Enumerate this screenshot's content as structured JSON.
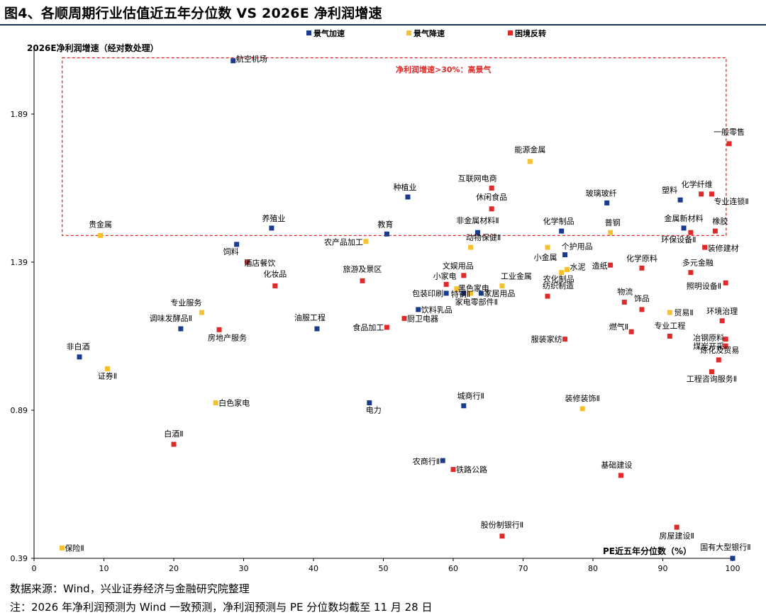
{
  "title": "图4、各顺周期行业估值近五年分位数  VS 2026E 净利润增速",
  "source": "数据来源：Wind，兴业证券经济与金融研究院整理",
  "note": "注：2026 年净利润预测为 Wind 一致预测，净利润预测与 PE 分位数均截至 11 月 28 日",
  "colors": {
    "景气加速": "#1a3a8f",
    "景气降速": "#f5c12e",
    "困境反转": "#e02a2a",
    "axis": "#000000",
    "frame": "#e02a2a"
  },
  "chart_data": {
    "type": "scatter",
    "xlabel": "PE近五年分位数（%）",
    "ylabel": "2026E净利润增速（经对数处理）",
    "xlim": [
      0,
      100
    ],
    "ylim": [
      0.39,
      2.25
    ],
    "x_ticks": [
      "0",
      "10",
      "20",
      "30",
      "40",
      "50",
      "60",
      "70",
      "80",
      "90",
      "100"
    ],
    "y_ticks": [
      "0.39",
      "0.89",
      "1.39",
      "1.89"
    ],
    "legend": {
      "position": "top",
      "entries": [
        "景气加速",
        "景气降速",
        "困境反转"
      ]
    },
    "annotation": {
      "text": "净利润增速>30%：高景气",
      "region": {
        "x": [
          2,
          101
        ],
        "y": [
          1.48,
          2.08
        ]
      }
    },
    "points": [
      {
        "label": "航空机场",
        "x": 28.5,
        "y": 2.07,
        "group": "景气加速"
      },
      {
        "label": "能源金属",
        "x": 71,
        "y": 1.73,
        "group": "景气降速"
      },
      {
        "label": "一般零售",
        "x": 99.5,
        "y": 1.79,
        "group": "困境反转"
      },
      {
        "label": "互联网电商",
        "x": 65.5,
        "y": 1.64,
        "group": "困境反转"
      },
      {
        "label": "种植业",
        "x": 53.5,
        "y": 1.61,
        "group": "景气加速"
      },
      {
        "label": "化学纤维",
        "x": 95.5,
        "y": 1.62,
        "group": "困境反转"
      },
      {
        "label": "塑料",
        "x": 92.5,
        "y": 1.6,
        "group": "景气加速"
      },
      {
        "label": "专业连锁Ⅱ",
        "x": 97,
        "y": 1.62,
        "group": "困境反转"
      },
      {
        "label": "玻璃玻纤",
        "x": 82,
        "y": 1.59,
        "group": "景气加速"
      },
      {
        "label": "休闲食品",
        "x": 65.5,
        "y": 1.57,
        "group": "困境反转"
      },
      {
        "label": "养殖业",
        "x": 34,
        "y": 1.505,
        "group": "景气加速"
      },
      {
        "label": "教育",
        "x": 50.5,
        "y": 1.485,
        "group": "景气加速"
      },
      {
        "label": "非金属材料Ⅱ",
        "x": 63.5,
        "y": 1.49,
        "group": "景气加速"
      },
      {
        "label": "化学制品",
        "x": 75.5,
        "y": 1.495,
        "group": "景气加速"
      },
      {
        "label": "普钢",
        "x": 82.5,
        "y": 1.49,
        "group": "景气降速"
      },
      {
        "label": "金属新材料",
        "x": 93,
        "y": 1.505,
        "group": "景气加速"
      },
      {
        "label": "橡胶",
        "x": 97.5,
        "y": 1.495,
        "group": "困境反转"
      },
      {
        "label": "贵金属",
        "x": 9.5,
        "y": 1.48,
        "group": "景气降速"
      },
      {
        "label": "环保设备Ⅱ",
        "x": 94,
        "y": 1.49,
        "group": "困境反转"
      },
      {
        "label": "饲料",
        "x": 29,
        "y": 1.45,
        "group": "景气加速"
      },
      {
        "label": "农产品加工",
        "x": 47.5,
        "y": 1.46,
        "group": "景气降速"
      },
      {
        "label": "动物保健Ⅱ",
        "x": 62.5,
        "y": 1.44,
        "group": "景气降速"
      },
      {
        "label": "小金属",
        "x": 73.5,
        "y": 1.44,
        "group": "景气降速"
      },
      {
        "label": "个护用品",
        "x": 76,
        "y": 1.415,
        "group": "景气加速"
      },
      {
        "label": "装修建材",
        "x": 96,
        "y": 1.44,
        "group": "困境反转"
      },
      {
        "label": "酒店餐饮",
        "x": 30.5,
        "y": 1.39,
        "group": "困境反转"
      },
      {
        "label": "造纸",
        "x": 82.5,
        "y": 1.38,
        "group": "困境反转"
      },
      {
        "label": "化学原料",
        "x": 87,
        "y": 1.37,
        "group": "困境反转"
      },
      {
        "label": "水泥",
        "x": 76.3,
        "y": 1.365,
        "group": "景气降速"
      },
      {
        "label": "农化制品",
        "x": 75.5,
        "y": 1.355,
        "group": "景气降速"
      },
      {
        "label": "多元金融",
        "x": 94,
        "y": 1.355,
        "group": "困境反转"
      },
      {
        "label": "旅游及景区",
        "x": 47,
        "y": 1.327,
        "group": "困境反转"
      },
      {
        "label": "文娱用品",
        "x": 61.5,
        "y": 1.345,
        "group": "困境反转"
      },
      {
        "label": "化妆品",
        "x": 34.5,
        "y": 1.31,
        "group": "困境反转"
      },
      {
        "label": "小家电",
        "x": 59,
        "y": 1.315,
        "group": "困境反转"
      },
      {
        "label": "黑色家电",
        "x": 60.5,
        "y": 1.3,
        "group": "景气降速"
      },
      {
        "label": "工业金属",
        "x": 67,
        "y": 1.31,
        "group": "景气降速"
      },
      {
        "label": "照明设备Ⅱ",
        "x": 99,
        "y": 1.32,
        "group": "困境反转"
      },
      {
        "label": "包装印刷",
        "x": 59,
        "y": 1.285,
        "group": "景气加速"
      },
      {
        "label": "特钢Ⅱ",
        "x": 61.5,
        "y": 1.285,
        "group": "景气加速"
      },
      {
        "label": "家居用品",
        "x": 64,
        "y": 1.285,
        "group": "景气加速"
      },
      {
        "label": "家电零部件Ⅱ",
        "x": 62.5,
        "y": 1.285,
        "group": "景气降速"
      },
      {
        "label": "纺织制造",
        "x": 73.5,
        "y": 1.275,
        "group": "困境反转"
      },
      {
        "label": "物流",
        "x": 84.5,
        "y": 1.255,
        "group": "困境反转"
      },
      {
        "label": "专业服务",
        "x": 24,
        "y": 1.22,
        "group": "景气降速"
      },
      {
        "label": "饮料乳品",
        "x": 55,
        "y": 1.23,
        "group": "景气加速"
      },
      {
        "label": "饰品",
        "x": 87,
        "y": 1.23,
        "group": "困境反转"
      },
      {
        "label": "贸易Ⅱ",
        "x": 91,
        "y": 1.22,
        "group": "景气降速"
      },
      {
        "label": "厨卫电器",
        "x": 53,
        "y": 1.2,
        "group": "困境反转"
      },
      {
        "label": "环境治理",
        "x": 98.5,
        "y": 1.192,
        "group": "困境反转"
      },
      {
        "label": "调味发酵品Ⅱ",
        "x": 21,
        "y": 1.165,
        "group": "景气加速"
      },
      {
        "label": "油服工程",
        "x": 40.5,
        "y": 1.165,
        "group": "景气加速"
      },
      {
        "label": "食品加工",
        "x": 50.5,
        "y": 1.17,
        "group": "困境反转"
      },
      {
        "label": "房地产服务",
        "x": 26.5,
        "y": 1.162,
        "group": "困境反转"
      },
      {
        "label": "燃气Ⅱ",
        "x": 85.5,
        "y": 1.155,
        "group": "困境反转"
      },
      {
        "label": "专业工程",
        "x": 91,
        "y": 1.14,
        "group": "困境反转"
      },
      {
        "label": "服装家纺",
        "x": 76,
        "y": 1.13,
        "group": "困境反转"
      },
      {
        "label": "冶钢原料",
        "x": 99,
        "y": 1.13,
        "group": "困境反转"
      },
      {
        "label": "煤炭开采",
        "x": 99,
        "y": 1.107,
        "group": "困境反转"
      },
      {
        "label": "非白酒",
        "x": 6.5,
        "y": 1.07,
        "group": "景气加速"
      },
      {
        "label": "证券Ⅱ",
        "x": 10.5,
        "y": 1.03,
        "group": "景气降速"
      },
      {
        "label": "炼化及贸易",
        "x": 98,
        "y": 1.06,
        "group": "困境反转"
      },
      {
        "label": "工程咨询服务Ⅱ",
        "x": 97,
        "y": 1.02,
        "group": "困境反转"
      },
      {
        "label": "白色家电",
        "x": 26,
        "y": 0.915,
        "group": "景气降速"
      },
      {
        "label": "电力",
        "x": 48,
        "y": 0.915,
        "group": "景气加速"
      },
      {
        "label": "城商行Ⅱ",
        "x": 61.5,
        "y": 0.905,
        "group": "景气加速"
      },
      {
        "label": "装修装饰Ⅱ",
        "x": 78.5,
        "y": 0.895,
        "group": "景气降速"
      },
      {
        "label": "白酒Ⅱ",
        "x": 20,
        "y": 0.775,
        "group": "困境反转"
      },
      {
        "label": "农商行Ⅱ",
        "x": 58.5,
        "y": 0.72,
        "group": "景气加速"
      },
      {
        "label": "铁路公路",
        "x": 60,
        "y": 0.69,
        "group": "困境反转"
      },
      {
        "label": "基础建设",
        "x": 84,
        "y": 0.67,
        "group": "困境反转"
      },
      {
        "label": "股份制银行Ⅱ",
        "x": 67,
        "y": 0.465,
        "group": "困境反转"
      },
      {
        "label": "房屋建设Ⅱ",
        "x": 92,
        "y": 0.495,
        "group": "困境反转"
      },
      {
        "label": "保险Ⅱ",
        "x": 4,
        "y": 0.425,
        "group": "景气降速"
      },
      {
        "label": "国有大型银行Ⅱ",
        "x": 100,
        "y": 0.39,
        "group": "景气加速"
      }
    ]
  }
}
